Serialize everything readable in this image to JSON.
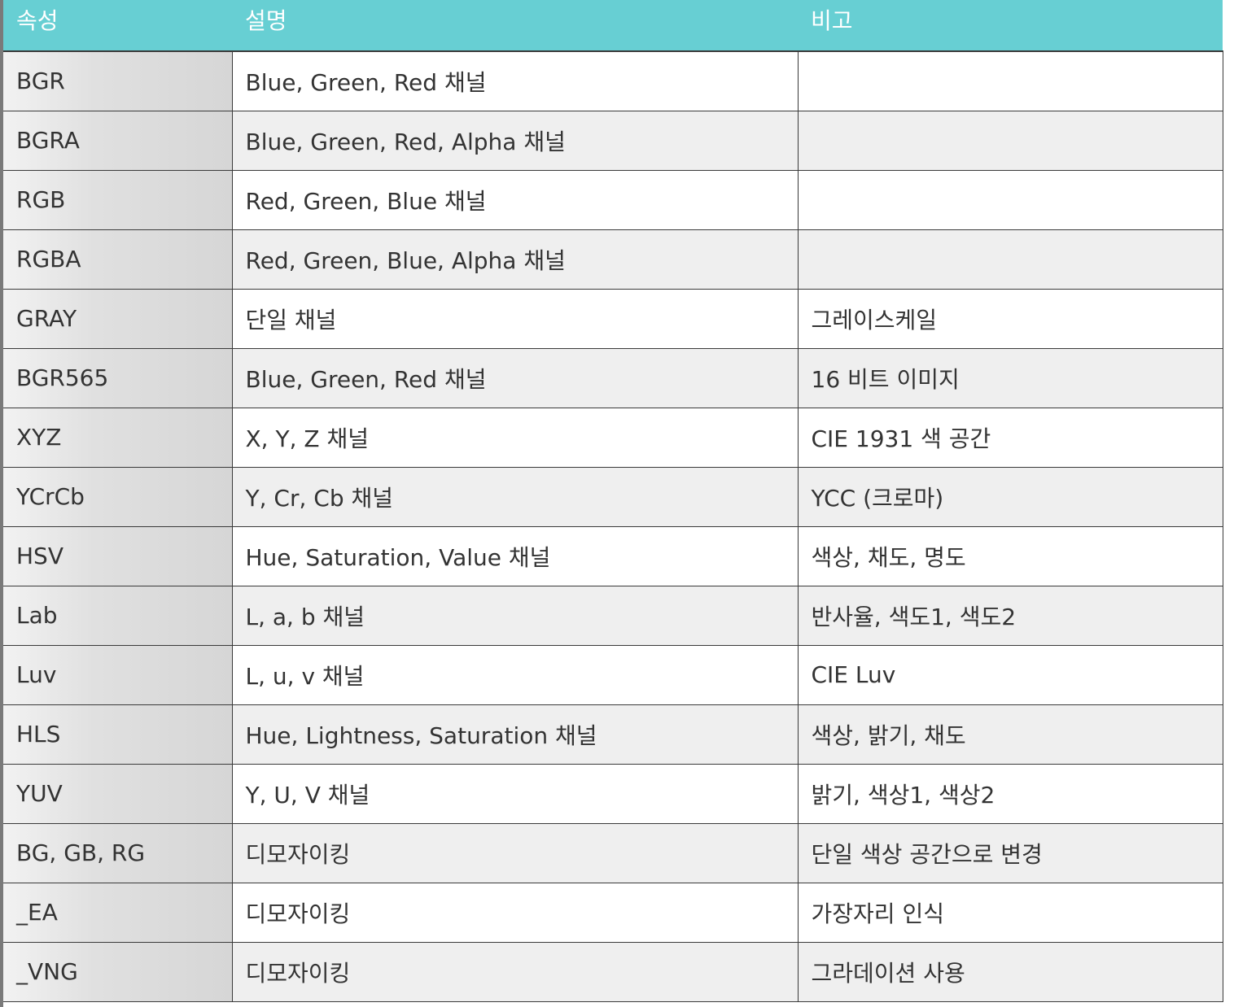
{
  "table": {
    "headers": [
      "속성",
      "설명",
      "비고"
    ],
    "rows": [
      {
        "attr": "BGR",
        "desc": "Blue, Green, Red 채널",
        "note": ""
      },
      {
        "attr": "BGRA",
        "desc": "Blue, Green, Red, Alpha 채널",
        "note": ""
      },
      {
        "attr": "RGB",
        "desc": "Red, Green, Blue 채널",
        "note": ""
      },
      {
        "attr": "RGBA",
        "desc": "Red, Green, Blue, Alpha 채널",
        "note": ""
      },
      {
        "attr": "GRAY",
        "desc": "단일 채널",
        "note": "그레이스케일"
      },
      {
        "attr": "BGR565",
        "desc": "Blue, Green, Red 채널",
        "note": "16 비트 이미지"
      },
      {
        "attr": "XYZ",
        "desc": "X, Y, Z 채널",
        "note": "CIE 1931 색 공간"
      },
      {
        "attr": "YCrCb",
        "desc": "Y, Cr, Cb 채널",
        "note": "YCC (크로마)"
      },
      {
        "attr": "HSV",
        "desc": "Hue, Saturation, Value 채널",
        "note": "색상, 채도, 명도"
      },
      {
        "attr": "Lab",
        "desc": "L, a, b 채널",
        "note": "반사율, 색도1, 색도2"
      },
      {
        "attr": "Luv",
        "desc": "L, u, v 채널",
        "note": "CIE Luv"
      },
      {
        "attr": "HLS",
        "desc": "Hue, Lightness, Saturation 채널",
        "note": "색상, 밝기, 채도"
      },
      {
        "attr": "YUV",
        "desc": "Y, U, V 채널",
        "note": "밝기, 색상1, 색상2"
      },
      {
        "attr": "BG, GB, RG",
        "desc": "디모자이킹",
        "note": "단일 색상 공간으로 변경"
      },
      {
        "attr": "_EA",
        "desc": "디모자이킹",
        "note": "가장자리 인식"
      },
      {
        "attr": "_VNG",
        "desc": "디모자이킹",
        "note": "그라데이션 사용"
      }
    ]
  },
  "colors": {
    "header_bg": "#67cfd3",
    "header_text": "#ffffff",
    "border": "#3a3a3a",
    "row_alt": "#efefef"
  }
}
